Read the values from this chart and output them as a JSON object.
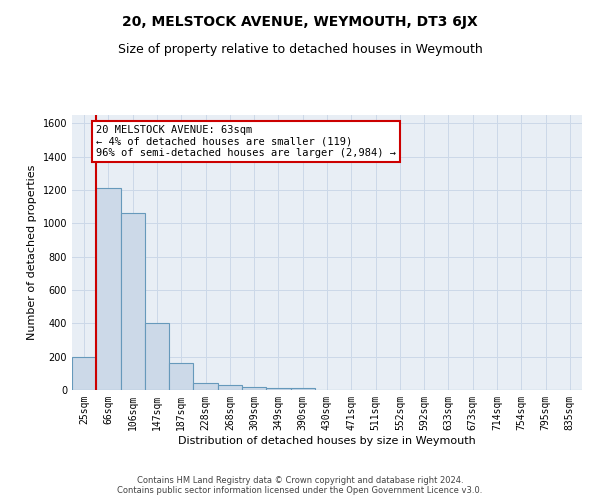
{
  "title": "20, MELSTOCK AVENUE, WEYMOUTH, DT3 6JX",
  "subtitle": "Size of property relative to detached houses in Weymouth",
  "xlabel": "Distribution of detached houses by size in Weymouth",
  "ylabel": "Number of detached properties",
  "footer_line1": "Contains HM Land Registry data © Crown copyright and database right 2024.",
  "footer_line2": "Contains public sector information licensed under the Open Government Licence v3.0.",
  "bar_labels": [
    "25sqm",
    "66sqm",
    "106sqm",
    "147sqm",
    "187sqm",
    "228sqm",
    "268sqm",
    "309sqm",
    "349sqm",
    "390sqm",
    "430sqm",
    "471sqm",
    "511sqm",
    "552sqm",
    "592sqm",
    "633sqm",
    "673sqm",
    "714sqm",
    "754sqm",
    "795sqm",
    "835sqm"
  ],
  "bar_values": [
    200,
    1215,
    1065,
    405,
    160,
    45,
    28,
    18,
    15,
    10,
    0,
    0,
    0,
    0,
    0,
    0,
    0,
    0,
    0,
    0,
    0
  ],
  "bar_color": "#ccd9e8",
  "bar_edgecolor": "#6699bb",
  "bar_linewidth": 0.8,
  "reference_line_color": "#cc0000",
  "ylim": [
    0,
    1650
  ],
  "yticks": [
    0,
    200,
    400,
    600,
    800,
    1000,
    1200,
    1400,
    1600
  ],
  "annotation_text": "20 MELSTOCK AVENUE: 63sqm\n← 4% of detached houses are smaller (119)\n96% of semi-detached houses are larger (2,984) →",
  "grid_color": "#ccd8e8",
  "plot_background": "#e8eef5",
  "title_fontsize": 10,
  "subtitle_fontsize": 9,
  "footer_fontsize": 6,
  "ylabel_fontsize": 8,
  "xlabel_fontsize": 8,
  "tick_fontsize": 7
}
